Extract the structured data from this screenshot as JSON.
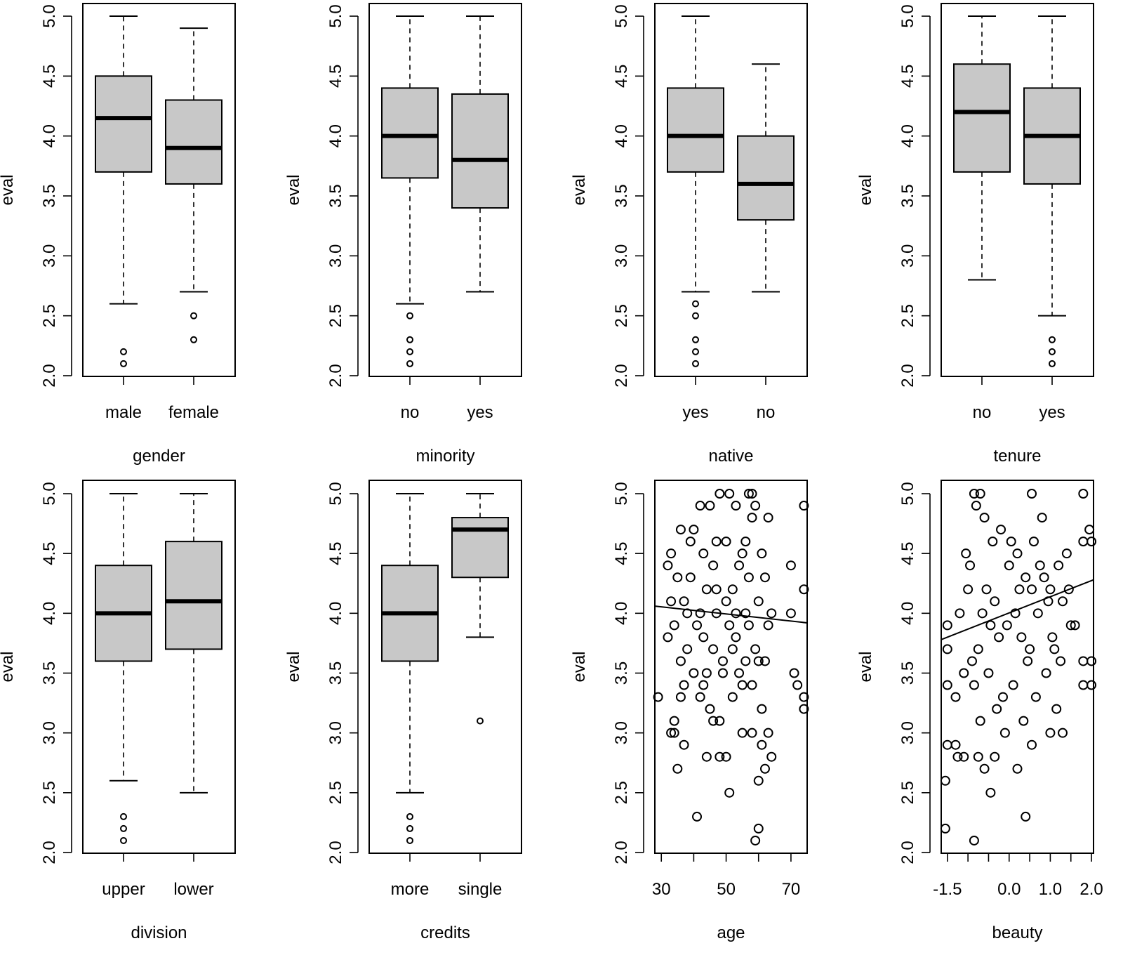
{
  "chart_data": [
    {
      "type": "boxplot",
      "xlabel": "gender",
      "ylabel": "eval",
      "ylim": [
        2,
        5
      ],
      "yticks": [
        "2.0",
        "2.5",
        "3.0",
        "3.5",
        "4.0",
        "4.5",
        "5.0"
      ],
      "categories": [
        "male",
        "female"
      ],
      "boxes": [
        {
          "lower_whisker": 2.6,
          "q1": 3.7,
          "median": 4.15,
          "q3": 4.5,
          "upper_whisker": 5.0,
          "outliers": [
            2.1,
            2.2
          ]
        },
        {
          "lower_whisker": 2.7,
          "q1": 3.6,
          "median": 3.9,
          "q3": 4.3,
          "upper_whisker": 4.9,
          "outliers": [
            2.3,
            2.5
          ]
        }
      ]
    },
    {
      "type": "boxplot",
      "xlabel": "minority",
      "ylabel": "eval",
      "ylim": [
        2,
        5
      ],
      "yticks": [
        "2.0",
        "2.5",
        "3.0",
        "3.5",
        "4.0",
        "4.5",
        "5.0"
      ],
      "categories": [
        "no",
        "yes"
      ],
      "boxes": [
        {
          "lower_whisker": 2.6,
          "q1": 3.65,
          "median": 4.0,
          "q3": 4.4,
          "upper_whisker": 5.0,
          "outliers": [
            2.1,
            2.2,
            2.3,
            2.5
          ]
        },
        {
          "lower_whisker": 2.7,
          "q1": 3.4,
          "median": 3.8,
          "q3": 4.35,
          "upper_whisker": 5.0,
          "outliers": []
        }
      ]
    },
    {
      "type": "boxplot",
      "xlabel": "native",
      "ylabel": "eval",
      "ylim": [
        2,
        5
      ],
      "yticks": [
        "2.0",
        "2.5",
        "3.0",
        "3.5",
        "4.0",
        "4.5",
        "5.0"
      ],
      "categories": [
        "yes",
        "no"
      ],
      "boxes": [
        {
          "lower_whisker": 2.7,
          "q1": 3.7,
          "median": 4.0,
          "q3": 4.4,
          "upper_whisker": 5.0,
          "outliers": [
            2.1,
            2.2,
            2.3,
            2.5,
            2.6
          ]
        },
        {
          "lower_whisker": 2.7,
          "q1": 3.3,
          "median": 3.6,
          "q3": 4.0,
          "upper_whisker": 4.6,
          "outliers": []
        }
      ]
    },
    {
      "type": "boxplot",
      "xlabel": "tenure",
      "ylabel": "eval",
      "ylim": [
        2,
        5
      ],
      "yticks": [
        "2.0",
        "2.5",
        "3.0",
        "3.5",
        "4.0",
        "4.5",
        "5.0"
      ],
      "categories": [
        "no",
        "yes"
      ],
      "boxes": [
        {
          "lower_whisker": 2.8,
          "q1": 3.7,
          "median": 4.2,
          "q3": 4.6,
          "upper_whisker": 5.0,
          "outliers": []
        },
        {
          "lower_whisker": 2.5,
          "q1": 3.6,
          "median": 4.0,
          "q3": 4.4,
          "upper_whisker": 5.0,
          "outliers": [
            2.1,
            2.2,
            2.3
          ]
        }
      ]
    },
    {
      "type": "boxplot",
      "xlabel": "division",
      "ylabel": "eval",
      "ylim": [
        2,
        5
      ],
      "yticks": [
        "2.0",
        "2.5",
        "3.0",
        "3.5",
        "4.0",
        "4.5",
        "5.0"
      ],
      "categories": [
        "upper",
        "lower"
      ],
      "boxes": [
        {
          "lower_whisker": 2.6,
          "q1": 3.6,
          "median": 4.0,
          "q3": 4.4,
          "upper_whisker": 5.0,
          "outliers": [
            2.1,
            2.2,
            2.3
          ]
        },
        {
          "lower_whisker": 2.5,
          "q1": 3.7,
          "median": 4.1,
          "q3": 4.6,
          "upper_whisker": 5.0,
          "outliers": []
        }
      ]
    },
    {
      "type": "boxplot",
      "xlabel": "credits",
      "ylabel": "eval",
      "ylim": [
        2,
        5
      ],
      "yticks": [
        "2.0",
        "2.5",
        "3.0",
        "3.5",
        "4.0",
        "4.5",
        "5.0"
      ],
      "categories": [
        "more",
        "single"
      ],
      "boxes": [
        {
          "lower_whisker": 2.5,
          "q1": 3.6,
          "median": 4.0,
          "q3": 4.4,
          "upper_whisker": 5.0,
          "outliers": [
            2.1,
            2.2,
            2.3
          ]
        },
        {
          "lower_whisker": 3.8,
          "q1": 4.3,
          "median": 4.7,
          "q3": 4.8,
          "upper_whisker": 5.0,
          "outliers": [
            3.1
          ]
        }
      ]
    },
    {
      "type": "scatter",
      "xlabel": "age",
      "ylabel": "eval",
      "ylim": [
        2,
        5
      ],
      "xlim": [
        28,
        75
      ],
      "yticks": [
        "2.0",
        "2.5",
        "3.0",
        "3.5",
        "4.0",
        "4.5",
        "5.0"
      ],
      "xticks": [
        30,
        50,
        70
      ],
      "trend": {
        "x": [
          28,
          75
        ],
        "y": [
          4.06,
          3.92
        ]
      },
      "points": [
        [
          29,
          3.3
        ],
        [
          32,
          4.4
        ],
        [
          33,
          3.0
        ],
        [
          34,
          3.0
        ],
        [
          35,
          2.7
        ],
        [
          36,
          3.6
        ],
        [
          37,
          2.9
        ],
        [
          38,
          4.0
        ],
        [
          39,
          4.6
        ],
        [
          41,
          2.3
        ],
        [
          42,
          4.0
        ],
        [
          43,
          3.4
        ],
        [
          44,
          2.8
        ],
        [
          46,
          3.1
        ],
        [
          47,
          4.2
        ],
        [
          48,
          2.8
        ],
        [
          49,
          3.5
        ],
        [
          50,
          2.8
        ],
        [
          51,
          2.5
        ],
        [
          52,
          3.3
        ],
        [
          53,
          4.0
        ],
        [
          55,
          3.4
        ],
        [
          56,
          4.6
        ],
        [
          57,
          5.0
        ],
        [
          58,
          5.0
        ],
        [
          58,
          3.0
        ],
        [
          59,
          4.9
        ],
        [
          59,
          2.1
        ],
        [
          60,
          2.6
        ],
        [
          60,
          2.2
        ],
        [
          61,
          2.9
        ],
        [
          62,
          2.7
        ],
        [
          63,
          3.0
        ],
        [
          64,
          2.8
        ],
        [
          70,
          4.4
        ],
        [
          71,
          3.5
        ],
        [
          72,
          3.4
        ],
        [
          74,
          3.3
        ],
        [
          74,
          3.2
        ],
        [
          74,
          4.2
        ],
        [
          74,
          4.9
        ],
        [
          70,
          4.0
        ],
        [
          48,
          5.0
        ],
        [
          51,
          5.0
        ],
        [
          45,
          4.9
        ],
        [
          42,
          4.9
        ],
        [
          53,
          4.9
        ],
        [
          58,
          4.8
        ],
        [
          63,
          4.8
        ],
        [
          36,
          4.7
        ],
        [
          40,
          4.7
        ],
        [
          50,
          4.6
        ],
        [
          55,
          4.5
        ],
        [
          61,
          4.5
        ],
        [
          33,
          4.5
        ],
        [
          46,
          4.4
        ],
        [
          57,
          4.3
        ],
        [
          62,
          4.3
        ],
        [
          35,
          4.3
        ],
        [
          44,
          4.2
        ],
        [
          52,
          4.2
        ],
        [
          60,
          4.1
        ],
        [
          37,
          4.1
        ],
        [
          47,
          4.0
        ],
        [
          56,
          4.0
        ],
        [
          63,
          3.9
        ],
        [
          34,
          3.9
        ],
        [
          43,
          3.8
        ],
        [
          53,
          3.8
        ],
        [
          59,
          3.7
        ],
        [
          38,
          3.7
        ],
        [
          49,
          3.6
        ],
        [
          62,
          3.6
        ],
        [
          40,
          3.5
        ],
        [
          54,
          3.5
        ],
        [
          58,
          3.4
        ],
        [
          36,
          3.3
        ],
        [
          45,
          3.2
        ],
        [
          61,
          3.2
        ],
        [
          34,
          3.1
        ],
        [
          48,
          3.1
        ],
        [
          55,
          3.0
        ],
        [
          44,
          3.5
        ],
        [
          41,
          3.9
        ],
        [
          50,
          4.1
        ],
        [
          46,
          3.7
        ],
        [
          39,
          4.3
        ],
        [
          57,
          3.9
        ],
        [
          60,
          3.6
        ],
        [
          42,
          3.3
        ],
        [
          52,
          3.7
        ],
        [
          32,
          3.8
        ],
        [
          64,
          4.0
        ],
        [
          33,
          4.1
        ],
        [
          47,
          4.6
        ],
        [
          54,
          4.4
        ],
        [
          37,
          3.4
        ],
        [
          43,
          4.5
        ],
        [
          51,
          3.9
        ],
        [
          56,
          3.6
        ]
      ]
    },
    {
      "type": "scatter",
      "xlabel": "beauty",
      "ylabel": "eval",
      "ylim": [
        2,
        5
      ],
      "xlim": [
        -1.65,
        2.05
      ],
      "yticks": [
        "2.0",
        "2.5",
        "3.0",
        "3.5",
        "4.0",
        "4.5",
        "5.0"
      ],
      "xticks": [
        "-1.5",
        "0.0",
        "1.0",
        "2.0"
      ],
      "trend": {
        "x": [
          -1.65,
          2.05
        ],
        "y": [
          3.78,
          4.28
        ]
      },
      "points": [
        [
          -1.55,
          2.2
        ],
        [
          -1.55,
          2.6
        ],
        [
          -1.5,
          2.9
        ],
        [
          -1.3,
          2.9
        ],
        [
          -1.25,
          2.8
        ],
        [
          -1.1,
          2.8
        ],
        [
          -0.85,
          2.1
        ],
        [
          -0.75,
          2.8
        ],
        [
          -0.6,
          2.7
        ],
        [
          -0.45,
          2.5
        ],
        [
          -0.35,
          2.8
        ],
        [
          0.4,
          2.3
        ],
        [
          0.55,
          2.9
        ],
        [
          0.2,
          2.7
        ],
        [
          -0.85,
          5.0
        ],
        [
          -0.7,
          5.0
        ],
        [
          0.55,
          5.0
        ],
        [
          1.8,
          5.0
        ],
        [
          1.8,
          4.6
        ],
        [
          2.0,
          4.6
        ],
        [
          1.95,
          4.7
        ],
        [
          1.8,
          3.6
        ],
        [
          1.8,
          3.4
        ],
        [
          2.0,
          3.6
        ],
        [
          2.0,
          3.4
        ],
        [
          1.3,
          3.0
        ],
        [
          1.0,
          3.0
        ],
        [
          1.15,
          3.2
        ],
        [
          -1.5,
          3.4
        ],
        [
          -1.5,
          3.9
        ],
        [
          -1.5,
          3.7
        ],
        [
          -1.3,
          3.3
        ],
        [
          -1.0,
          4.2
        ],
        [
          -0.8,
          4.9
        ],
        [
          -0.6,
          4.8
        ],
        [
          -0.4,
          4.6
        ],
        [
          -0.2,
          4.7
        ],
        [
          0.0,
          4.4
        ],
        [
          0.2,
          4.5
        ],
        [
          0.4,
          4.3
        ],
        [
          0.6,
          4.6
        ],
        [
          0.8,
          4.8
        ],
        [
          1.0,
          4.2
        ],
        [
          1.2,
          4.4
        ],
        [
          1.4,
          4.5
        ],
        [
          1.6,
          3.9
        ],
        [
          -1.2,
          4.0
        ],
        [
          -0.9,
          3.6
        ],
        [
          -0.7,
          3.1
        ],
        [
          -0.5,
          3.5
        ],
        [
          -0.3,
          3.2
        ],
        [
          -0.1,
          3.0
        ],
        [
          0.1,
          3.4
        ],
        [
          0.3,
          3.8
        ],
        [
          0.5,
          3.7
        ],
        [
          0.7,
          4.0
        ],
        [
          0.9,
          3.5
        ],
        [
          1.1,
          3.7
        ],
        [
          1.3,
          4.1
        ],
        [
          1.5,
          3.9
        ],
        [
          -1.1,
          3.5
        ],
        [
          -0.95,
          4.4
        ],
        [
          -0.65,
          4.0
        ],
        [
          -0.35,
          4.1
        ],
        [
          -0.05,
          3.9
        ],
        [
          0.25,
          4.2
        ],
        [
          0.45,
          3.6
        ],
        [
          0.65,
          3.3
        ],
        [
          0.85,
          4.3
        ],
        [
          1.05,
          3.8
        ],
        [
          -0.75,
          3.7
        ],
        [
          -0.55,
          4.2
        ],
        [
          -0.25,
          3.8
        ],
        [
          0.05,
          4.6
        ],
        [
          0.35,
          3.1
        ],
        [
          0.75,
          4.4
        ],
        [
          1.25,
          3.6
        ],
        [
          -1.05,
          4.5
        ],
        [
          -0.15,
          3.3
        ],
        [
          0.95,
          4.1
        ],
        [
          -0.45,
          3.9
        ],
        [
          0.15,
          4.0
        ],
        [
          0.55,
          4.2
        ],
        [
          -0.85,
          3.4
        ],
        [
          1.45,
          4.2
        ]
      ]
    }
  ]
}
